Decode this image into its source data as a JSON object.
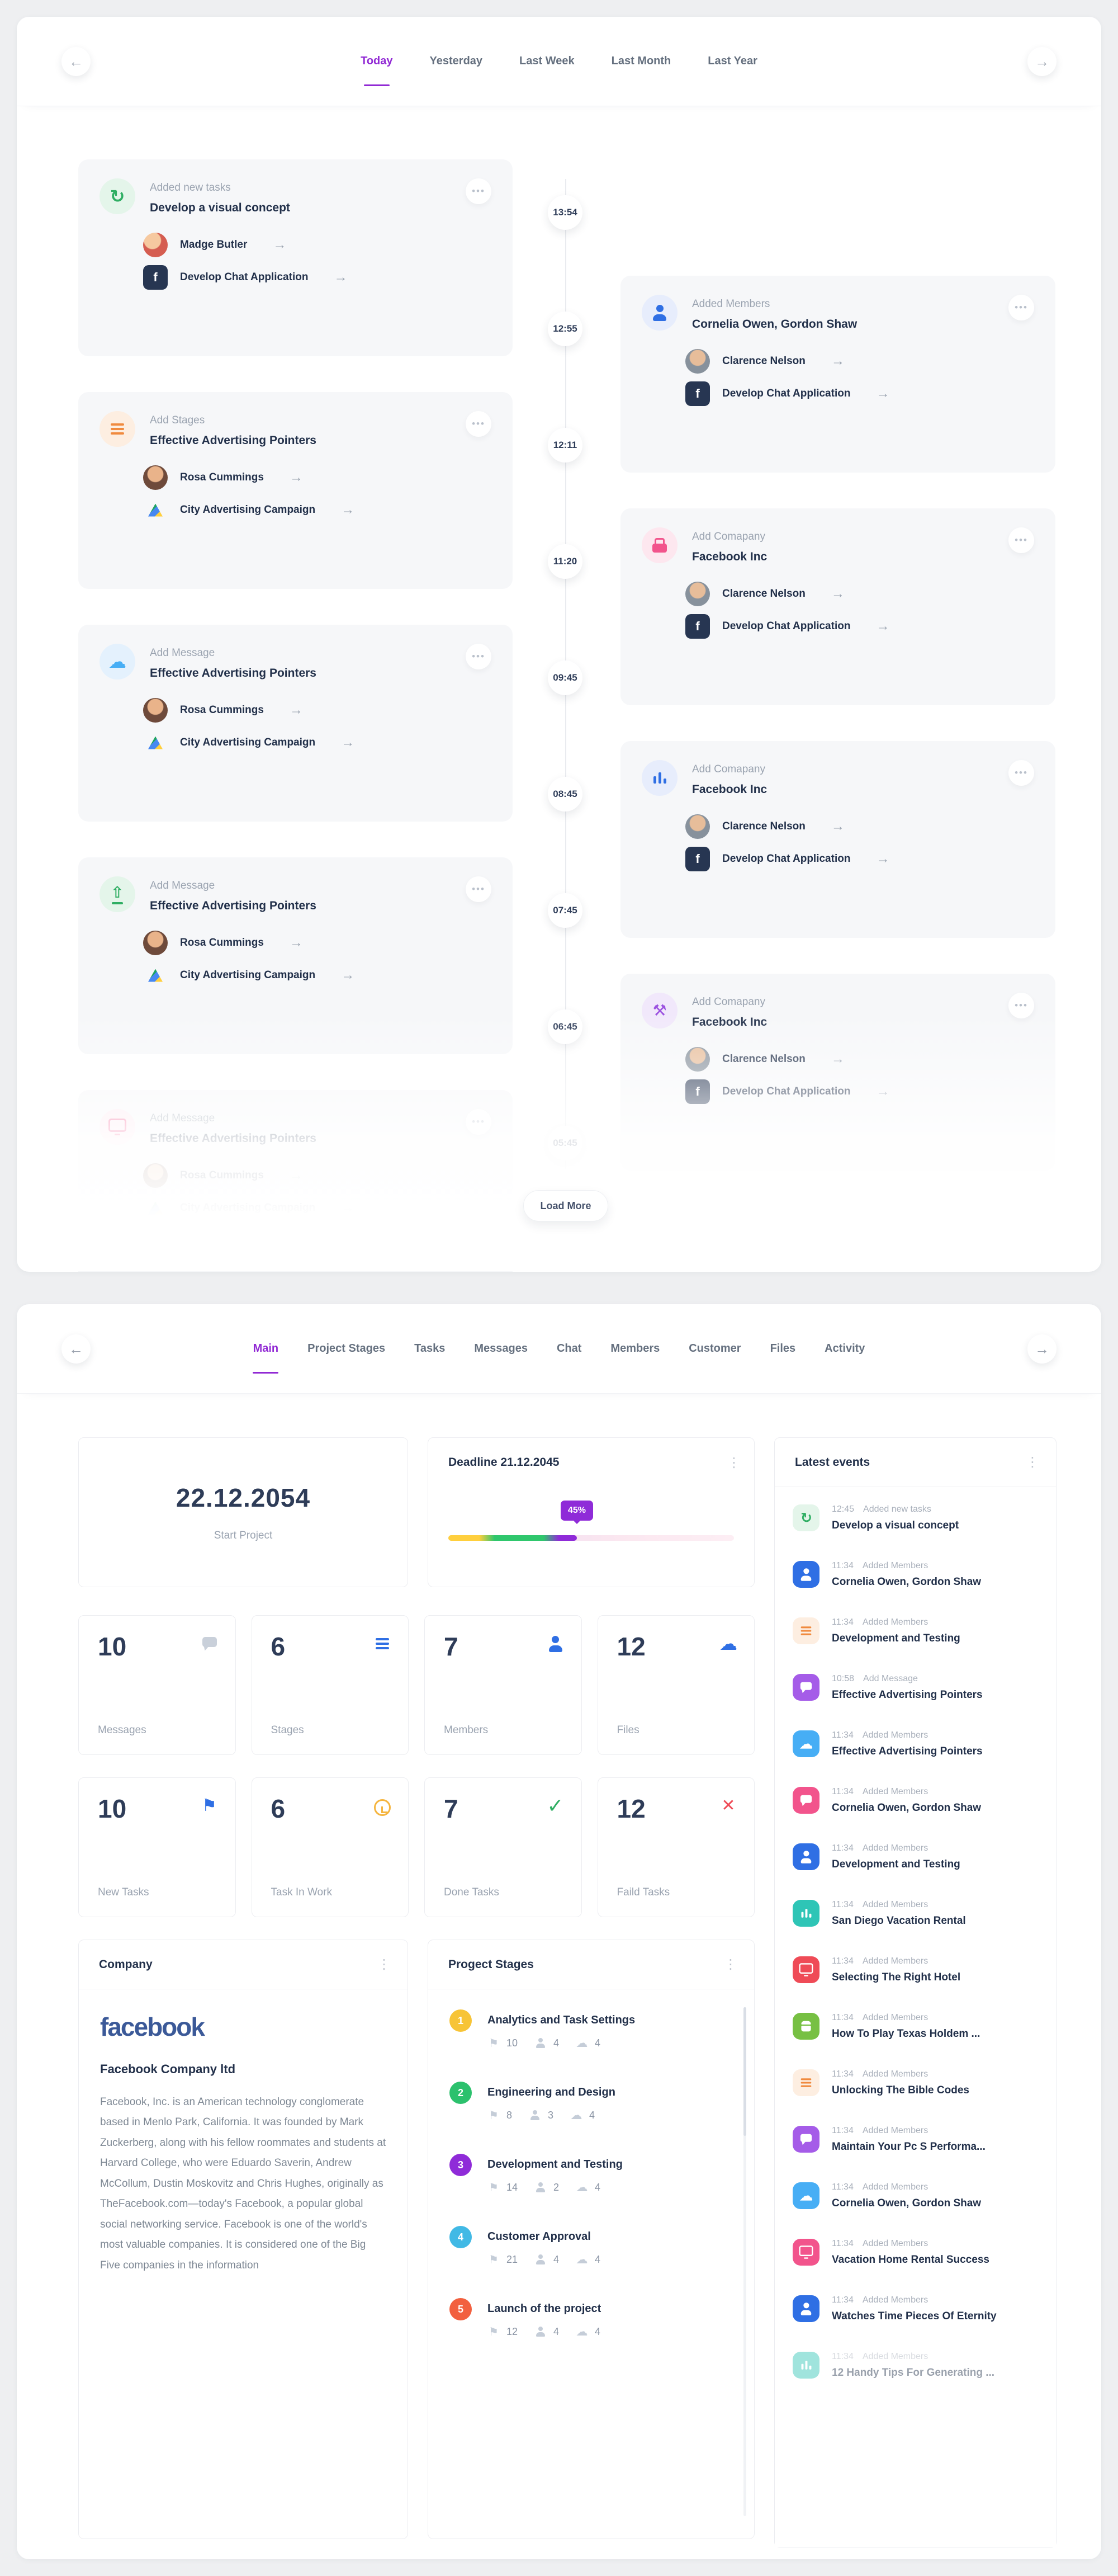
{
  "colors": {
    "accent_purple": "#9129d4",
    "facebook_blue": "#3b5998",
    "progress_yellow": "#ffcf3d",
    "progress_green": "#2fc76d",
    "progress_purple": "#8f2bd8"
  },
  "timeline_panel": {
    "nav_back": "←",
    "nav_forward": "→",
    "tabs": [
      {
        "label": "Today",
        "active": "true"
      },
      {
        "label": "Yesterday"
      },
      {
        "label": "Last Week"
      },
      {
        "label": "Last Month"
      },
      {
        "label": "Last Year"
      }
    ],
    "times": [
      {
        "t": "13:54"
      },
      {
        "t": "12:55"
      },
      {
        "t": "12:11"
      },
      {
        "t": "11:20"
      },
      {
        "t": "09:45"
      },
      {
        "t": "08:45"
      },
      {
        "t": "07:45"
      },
      {
        "t": "06:45"
      },
      {
        "t": "05:45"
      }
    ],
    "load_more": "Load More",
    "left_cards": [
      {
        "title": "Added new tasks",
        "subtitle": "Develop a visual concept",
        "icon": "refresh",
        "icon_name": "history-icon",
        "tint": "green",
        "variant": "soft",
        "menu": "•••",
        "row1": {
          "name": "Madge Butler",
          "avatar": "photo-madge",
          "arrow": "→"
        },
        "row2": {
          "name": "Develop Chat Application",
          "avatar": "facebook-app",
          "arrow": "→"
        }
      },
      {
        "title": "Add Stages",
        "subtitle": "Effective Advertising Pointers",
        "icon": "lines",
        "icon_name": "stages-icon",
        "tint": "orange",
        "variant": "soft",
        "menu": "•••",
        "row1": {
          "name": "Rosa Cummings",
          "avatar": "photo-rosa",
          "arrow": "→"
        },
        "row2": {
          "name": "City Advertising Campaign",
          "avatar": "drive-app",
          "arrow": "→"
        }
      },
      {
        "title": "Add Message",
        "subtitle": "Effective Advertising Pointers",
        "icon": "cloud",
        "icon_name": "cloud-icon",
        "tint": "lightblue",
        "variant": "soft",
        "menu": "•••",
        "row1": {
          "name": "Rosa Cummings",
          "avatar": "photo-rosa",
          "arrow": "→"
        },
        "row2": {
          "name": "City Advertising Campaign",
          "avatar": "drive-app",
          "arrow": "→"
        }
      },
      {
        "title": "Add Message",
        "subtitle": "Effective Advertising Pointers",
        "icon": "upload",
        "icon_name": "upload-icon",
        "tint": "green",
        "variant": "soft",
        "menu": "•••",
        "row1": {
          "name": "Rosa Cummings",
          "avatar": "photo-rosa",
          "arrow": "→"
        },
        "row2": {
          "name": "City Advertising Campaign",
          "avatar": "drive-app",
          "arrow": "→"
        }
      },
      {
        "title": "Add Message",
        "subtitle": "Effective Advertising Pointers",
        "icon": "tv",
        "icon_name": "media-icon",
        "tint": "pink",
        "variant": "soft",
        "menu": "•••",
        "row1": {
          "name": "Rosa Cummings",
          "avatar": "photo-rosa",
          "arrow": "→"
        },
        "row2": {
          "name": "City Advertising Campaign",
          "avatar": "drive-app",
          "arrow": "→"
        }
      }
    ],
    "right_cards": [
      {
        "title": "Added Members",
        "subtitle": "Cornelia Owen, Gordon Shaw",
        "icon": "person",
        "icon_name": "member-icon",
        "tint": "blue",
        "variant": "soft",
        "menu": "•••",
        "row1": {
          "name": "Clarence Nelson",
          "avatar": "photo-clarence",
          "arrow": "→"
        },
        "row2": {
          "name": "Develop Chat Application",
          "avatar": "facebook-app",
          "arrow": "→"
        }
      },
      {
        "title": "Add Comapany",
        "subtitle": "Facebook Inc",
        "icon": "briefcase",
        "icon_name": "briefcase-icon",
        "tint": "pink",
        "variant": "soft",
        "menu": "•••",
        "row1": {
          "name": "Clarence Nelson",
          "avatar": "photo-clarence",
          "arrow": "→"
        },
        "row2": {
          "name": "Develop Chat Application",
          "avatar": "facebook-app",
          "arrow": "→"
        }
      },
      {
        "title": "Add Comapany",
        "subtitle": "Facebook Inc",
        "icon": "chart",
        "icon_name": "chart-icon",
        "tint": "blue",
        "variant": "soft",
        "menu": "•••",
        "row1": {
          "name": "Clarence Nelson",
          "avatar": "photo-clarence",
          "arrow": "→"
        },
        "row2": {
          "name": "Develop Chat Application",
          "avatar": "facebook-app",
          "arrow": "→"
        }
      },
      {
        "title": "Add Comapany",
        "subtitle": "Facebook Inc",
        "icon": "wrench",
        "icon_name": "wrench-icon",
        "tint": "purple",
        "variant": "soft",
        "menu": "•••",
        "row1": {
          "name": "Clarence Nelson",
          "avatar": "photo-clarence",
          "arrow": "→"
        },
        "row2": {
          "name": "Develop Chat Application",
          "avatar": "facebook-app",
          "arrow": "→"
        }
      }
    ]
  },
  "dashboard_panel": {
    "nav_back": "←",
    "nav_forward": "→",
    "tabs": [
      {
        "label": "Main",
        "active": "true"
      },
      {
        "label": "Project Stages"
      },
      {
        "label": "Tasks"
      },
      {
        "label": "Messages"
      },
      {
        "label": "Chat"
      },
      {
        "label": "Members"
      },
      {
        "label": "Customer"
      },
      {
        "label": "Files"
      },
      {
        "label": "Activity"
      }
    ],
    "start_card": {
      "date": "22.12.2054",
      "label": "Start Project"
    },
    "deadline_card": {
      "title": "Deadline 21.12.2045",
      "menu": "⋮",
      "percent_label": "45%",
      "percent_value": 45
    },
    "stats": [
      {
        "value": "10",
        "label": "Messages",
        "icon": "message",
        "icon_name": "messages-icon",
        "tint": "gray"
      },
      {
        "value": "6",
        "label": "Stages",
        "icon": "lines",
        "icon_name": "stages-icon",
        "tint": "blue"
      },
      {
        "value": "7",
        "label": "Members",
        "icon": "person",
        "icon_name": "members-icon",
        "tint": "blue"
      },
      {
        "value": "12",
        "label": "Files",
        "icon": "cloud",
        "icon_name": "files-icon",
        "tint": "blue"
      },
      {
        "value": "10",
        "label": "New Tasks",
        "icon": "flag",
        "icon_name": "new-tasks-icon",
        "tint": "blue"
      },
      {
        "value": "6",
        "label": "Task In Work",
        "icon": "clock",
        "icon_name": "task-in-work-icon",
        "tint": "yellow"
      },
      {
        "value": "7",
        "label": "Done Tasks",
        "icon": "check",
        "icon_name": "done-tasks-icon",
        "tint": "green"
      },
      {
        "value": "12",
        "label": "Faild Tasks",
        "icon": "x",
        "icon_name": "faild-tasks-icon",
        "tint": "red"
      }
    ],
    "company_card": {
      "title": "Company",
      "menu": "⋮",
      "logo_text": "facebook",
      "company_name": "Facebook Company ltd",
      "description": "Facebook, Inc. is an American technology conglomerate based in Menlo Park, California. It was founded by Mark Zuckerberg, along with his fellow roommates and students at Harvard College, who were Eduardo Saverin, Andrew McCollum, Dustin Moskovitz and Chris Hughes, originally as TheFacebook.com—today's Facebook, a popular global social networking service. Facebook is one of the world's most valuable companies. It is considered one of the Big Five companies in the information"
    },
    "stages_card": {
      "title": "Progect Stages",
      "menu": "⋮",
      "items": [
        {
          "num": "1",
          "color": "yellow",
          "title": "Analytics and Task Settings",
          "tasks": "10",
          "members": "4",
          "files": "4"
        },
        {
          "num": "2",
          "color": "green",
          "title": "Engineering and Design",
          "tasks": "8",
          "members": "3",
          "files": "4"
        },
        {
          "num": "3",
          "color": "purple",
          "title": "Development and Testing",
          "tasks": "14",
          "members": "2",
          "files": "4"
        },
        {
          "num": "4",
          "color": "cyan",
          "title": "Customer Approval",
          "tasks": "21",
          "members": "4",
          "files": "4"
        },
        {
          "num": "5",
          "color": "red",
          "title": "Launch of the project",
          "tasks": "12",
          "members": "4",
          "files": "4"
        }
      ]
    },
    "events_card": {
      "title": "Latest events",
      "menu": "⋮",
      "items": [
        {
          "time": "12:45",
          "action": "Added new tasks",
          "title": "Develop a visual concept",
          "icon": "refresh",
          "icon_name": "history-icon",
          "tint": "green",
          "variant": "soft"
        },
        {
          "time": "11:34",
          "action": "Added Members",
          "title": "Cornelia Owen, Gordon Shaw",
          "icon": "person",
          "icon_name": "member-icon",
          "tint": "blue",
          "variant": "solid"
        },
        {
          "time": "11:34",
          "action": "Added Members",
          "title": "Development and Testing",
          "icon": "lines",
          "icon_name": "stages-icon",
          "tint": "orange",
          "variant": "soft"
        },
        {
          "time": "10:58",
          "action": "Add Message",
          "title": "Effective Advertising Pointers",
          "icon": "message",
          "icon_name": "message-icon",
          "tint": "purple",
          "variant": "solid"
        },
        {
          "time": "11:34",
          "action": "Added Members",
          "title": "Effective Advertising Pointers",
          "icon": "cloud",
          "icon_name": "cloud-icon",
          "tint": "lightblue",
          "variant": "solid"
        },
        {
          "time": "11:34",
          "action": "Added Members",
          "title": "Cornelia Owen, Gordon Shaw",
          "icon": "message",
          "icon_name": "message-icon",
          "tint": "pink",
          "variant": "solid"
        },
        {
          "time": "11:34",
          "action": "Added Members",
          "title": "Development and Testing",
          "icon": "person",
          "icon_name": "member-icon",
          "tint": "blue",
          "variant": "solid"
        },
        {
          "time": "11:34",
          "action": "Added Members",
          "title": "San Diego Vacation Rental",
          "icon": "chart",
          "icon_name": "chart-icon",
          "tint": "teal",
          "variant": "solid"
        },
        {
          "time": "11:34",
          "action": "Added Members",
          "title": "Selecting The Right Hotel",
          "icon": "tv",
          "icon_name": "media-icon",
          "tint": "red",
          "variant": "solid"
        },
        {
          "time": "11:34",
          "action": "Added Members",
          "title": "How To Play Texas Holdem ...",
          "icon": "android",
          "icon_name": "android-icon",
          "tint": "green",
          "variant": "solid"
        },
        {
          "time": "11:34",
          "action": "Added Members",
          "title": "Unlocking The Bible Codes",
          "icon": "lines",
          "icon_name": "stages-icon",
          "tint": "orange",
          "variant": "soft"
        },
        {
          "time": "11:34",
          "action": "Added Members",
          "title": "Maintain Your Pc S Performa...",
          "icon": "message",
          "icon_name": "message-icon",
          "tint": "purple",
          "variant": "solid"
        },
        {
          "time": "11:34",
          "action": "Added Members",
          "title": "Cornelia Owen, Gordon Shaw",
          "icon": "cloud",
          "icon_name": "cloud-icon",
          "tint": "lightblue",
          "variant": "solid"
        },
        {
          "time": "11:34",
          "action": "Added Members",
          "title": "Vacation Home Rental Success",
          "icon": "tv",
          "icon_name": "media-icon",
          "tint": "pink",
          "variant": "solid"
        },
        {
          "time": "11:34",
          "action": "Added Members",
          "title": "Watches Time Pieces Of Eternity",
          "icon": "person",
          "icon_name": "member-icon",
          "tint": "blue",
          "variant": "solid"
        },
        {
          "time": "11:34",
          "action": "Added Members",
          "title": "12 Handy Tips For Generating ...",
          "icon": "chart",
          "icon_name": "chart-icon",
          "tint": "teal",
          "variant": "solid",
          "faded": "true"
        }
      ]
    }
  }
}
